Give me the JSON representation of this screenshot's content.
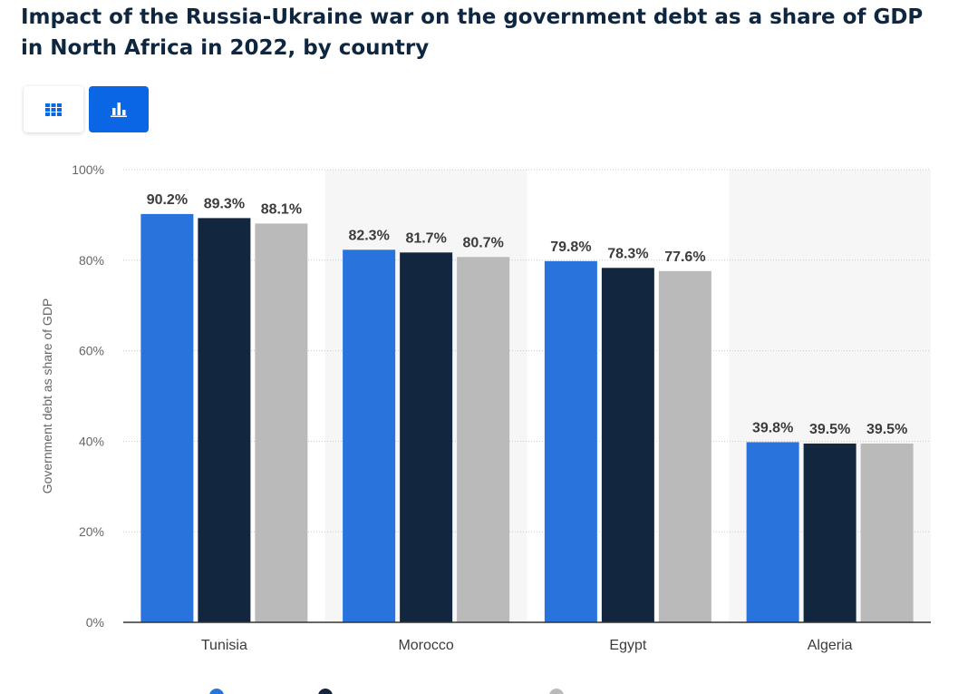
{
  "title": "Impact of the Russia-Ukraine war on the government debt as a share of GDP in North Africa in 2022, by country",
  "view_toggle": {
    "options": [
      {
        "icon": "table-grid-icon",
        "selected": false
      },
      {
        "icon": "bar-chart-icon",
        "selected": true
      }
    ]
  },
  "colors": {
    "series": [
      "#2874dc",
      "#13263f",
      "#bababa"
    ],
    "accent": "#0a66e4",
    "band": "#f6f6f6"
  },
  "chart_data": {
    "type": "bar",
    "title": "Impact of the Russia-Ukraine war on the government debt as a share of GDP in North Africa in 2022, by country",
    "xlabel": "",
    "ylabel": "Government debt as share of GDP",
    "categories": [
      "Tunisia",
      "Morocco",
      "Egypt",
      "Algeria"
    ],
    "series": [
      {
        "values": [
          90.2,
          82.3,
          79.8,
          39.8
        ]
      },
      {
        "values": [
          89.3,
          81.7,
          78.3,
          39.5
        ]
      },
      {
        "values": [
          88.1,
          80.7,
          77.6,
          39.5
        ]
      }
    ],
    "value_labels": [
      [
        "90.2%",
        "82.3%",
        "79.8%",
        "39.8%"
      ],
      [
        "89.3%",
        "81.7%",
        "78.3%",
        "39.5%"
      ],
      [
        "88.1%",
        "80.7%",
        "77.6%",
        "39.5%"
      ]
    ],
    "ylim": [
      0,
      100
    ],
    "yticks": [
      0,
      20,
      40,
      60,
      80,
      100
    ],
    "ytick_labels": [
      "0%",
      "20%",
      "40%",
      "60%",
      "80%",
      "100%"
    ],
    "grid": true,
    "legend_position": "bottom"
  }
}
